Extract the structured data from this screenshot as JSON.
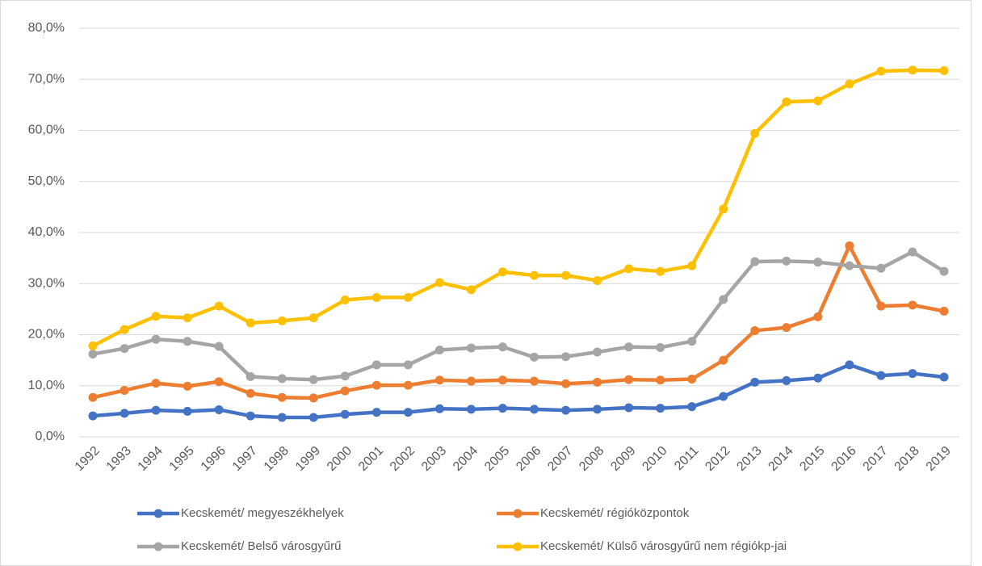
{
  "chart_data": {
    "type": "line",
    "categories": [
      "1992",
      "1993",
      "1994",
      "1995",
      "1996",
      "1997",
      "1998",
      "1999",
      "2000",
      "2001",
      "2002",
      "2003",
      "2004",
      "2005",
      "2006",
      "2007",
      "2008",
      "2009",
      "2010",
      "2011",
      "2012",
      "2013",
      "2014",
      "2015",
      "2016",
      "2017",
      "2018",
      "2019"
    ],
    "series": [
      {
        "name": "Kecskemét/ megyeszékhelyek",
        "color": "#4472c4",
        "values": [
          4.1,
          4.6,
          5.2,
          5.0,
          5.3,
          4.1,
          3.8,
          3.8,
          4.4,
          4.8,
          4.8,
          5.5,
          5.4,
          5.6,
          5.4,
          5.2,
          5.4,
          5.7,
          5.6,
          5.9,
          7.9,
          10.7,
          11.0,
          11.5,
          14.1,
          12.0,
          12.4,
          11.7
        ]
      },
      {
        "name": "Kecskemét/ régióközpontok",
        "color": "#ed7d31",
        "values": [
          7.7,
          9.1,
          10.5,
          9.9,
          10.8,
          8.5,
          7.7,
          7.6,
          9.0,
          10.1,
          10.1,
          11.1,
          10.9,
          11.1,
          10.9,
          10.4,
          10.7,
          11.2,
          11.1,
          11.3,
          15.0,
          20.8,
          21.4,
          23.5,
          37.4,
          25.6,
          25.8,
          24.6
        ]
      },
      {
        "name": "Kecskemét/ Belső városgyűrű",
        "color": "#a5a5a5",
        "values": [
          16.2,
          17.3,
          19.1,
          18.7,
          17.7,
          11.8,
          11.4,
          11.2,
          11.9,
          14.1,
          14.1,
          17.0,
          17.4,
          17.6,
          15.6,
          15.7,
          16.6,
          17.6,
          17.5,
          18.7,
          26.9,
          34.3,
          34.4,
          34.2,
          33.5,
          33.0,
          36.2,
          32.4
        ]
      },
      {
        "name": "Kecskemét/ Külső városgyűrű nem régiókp-jai",
        "color": "#ffc000",
        "values": [
          17.8,
          21.0,
          23.6,
          23.3,
          25.6,
          22.3,
          22.7,
          23.3,
          26.8,
          27.3,
          27.3,
          30.2,
          28.8,
          32.3,
          31.6,
          31.6,
          30.6,
          32.9,
          32.4,
          33.5,
          44.6,
          59.4,
          65.6,
          65.8,
          69.1,
          71.6,
          71.8,
          71.7
        ]
      }
    ],
    "ylim": [
      0,
      80
    ],
    "yticks": [
      {
        "value": 0,
        "label": "0,0%"
      },
      {
        "value": 10,
        "label": "10,0%"
      },
      {
        "value": 20,
        "label": "20,0%"
      },
      {
        "value": 30,
        "label": "30,0%"
      },
      {
        "value": 40,
        "label": "40,0%"
      },
      {
        "value": 50,
        "label": "50,0%"
      },
      {
        "value": 60,
        "label": "60,0%"
      },
      {
        "value": 70,
        "label": "70,0%"
      },
      {
        "value": 80,
        "label": "80,0%"
      }
    ],
    "grid": true
  }
}
